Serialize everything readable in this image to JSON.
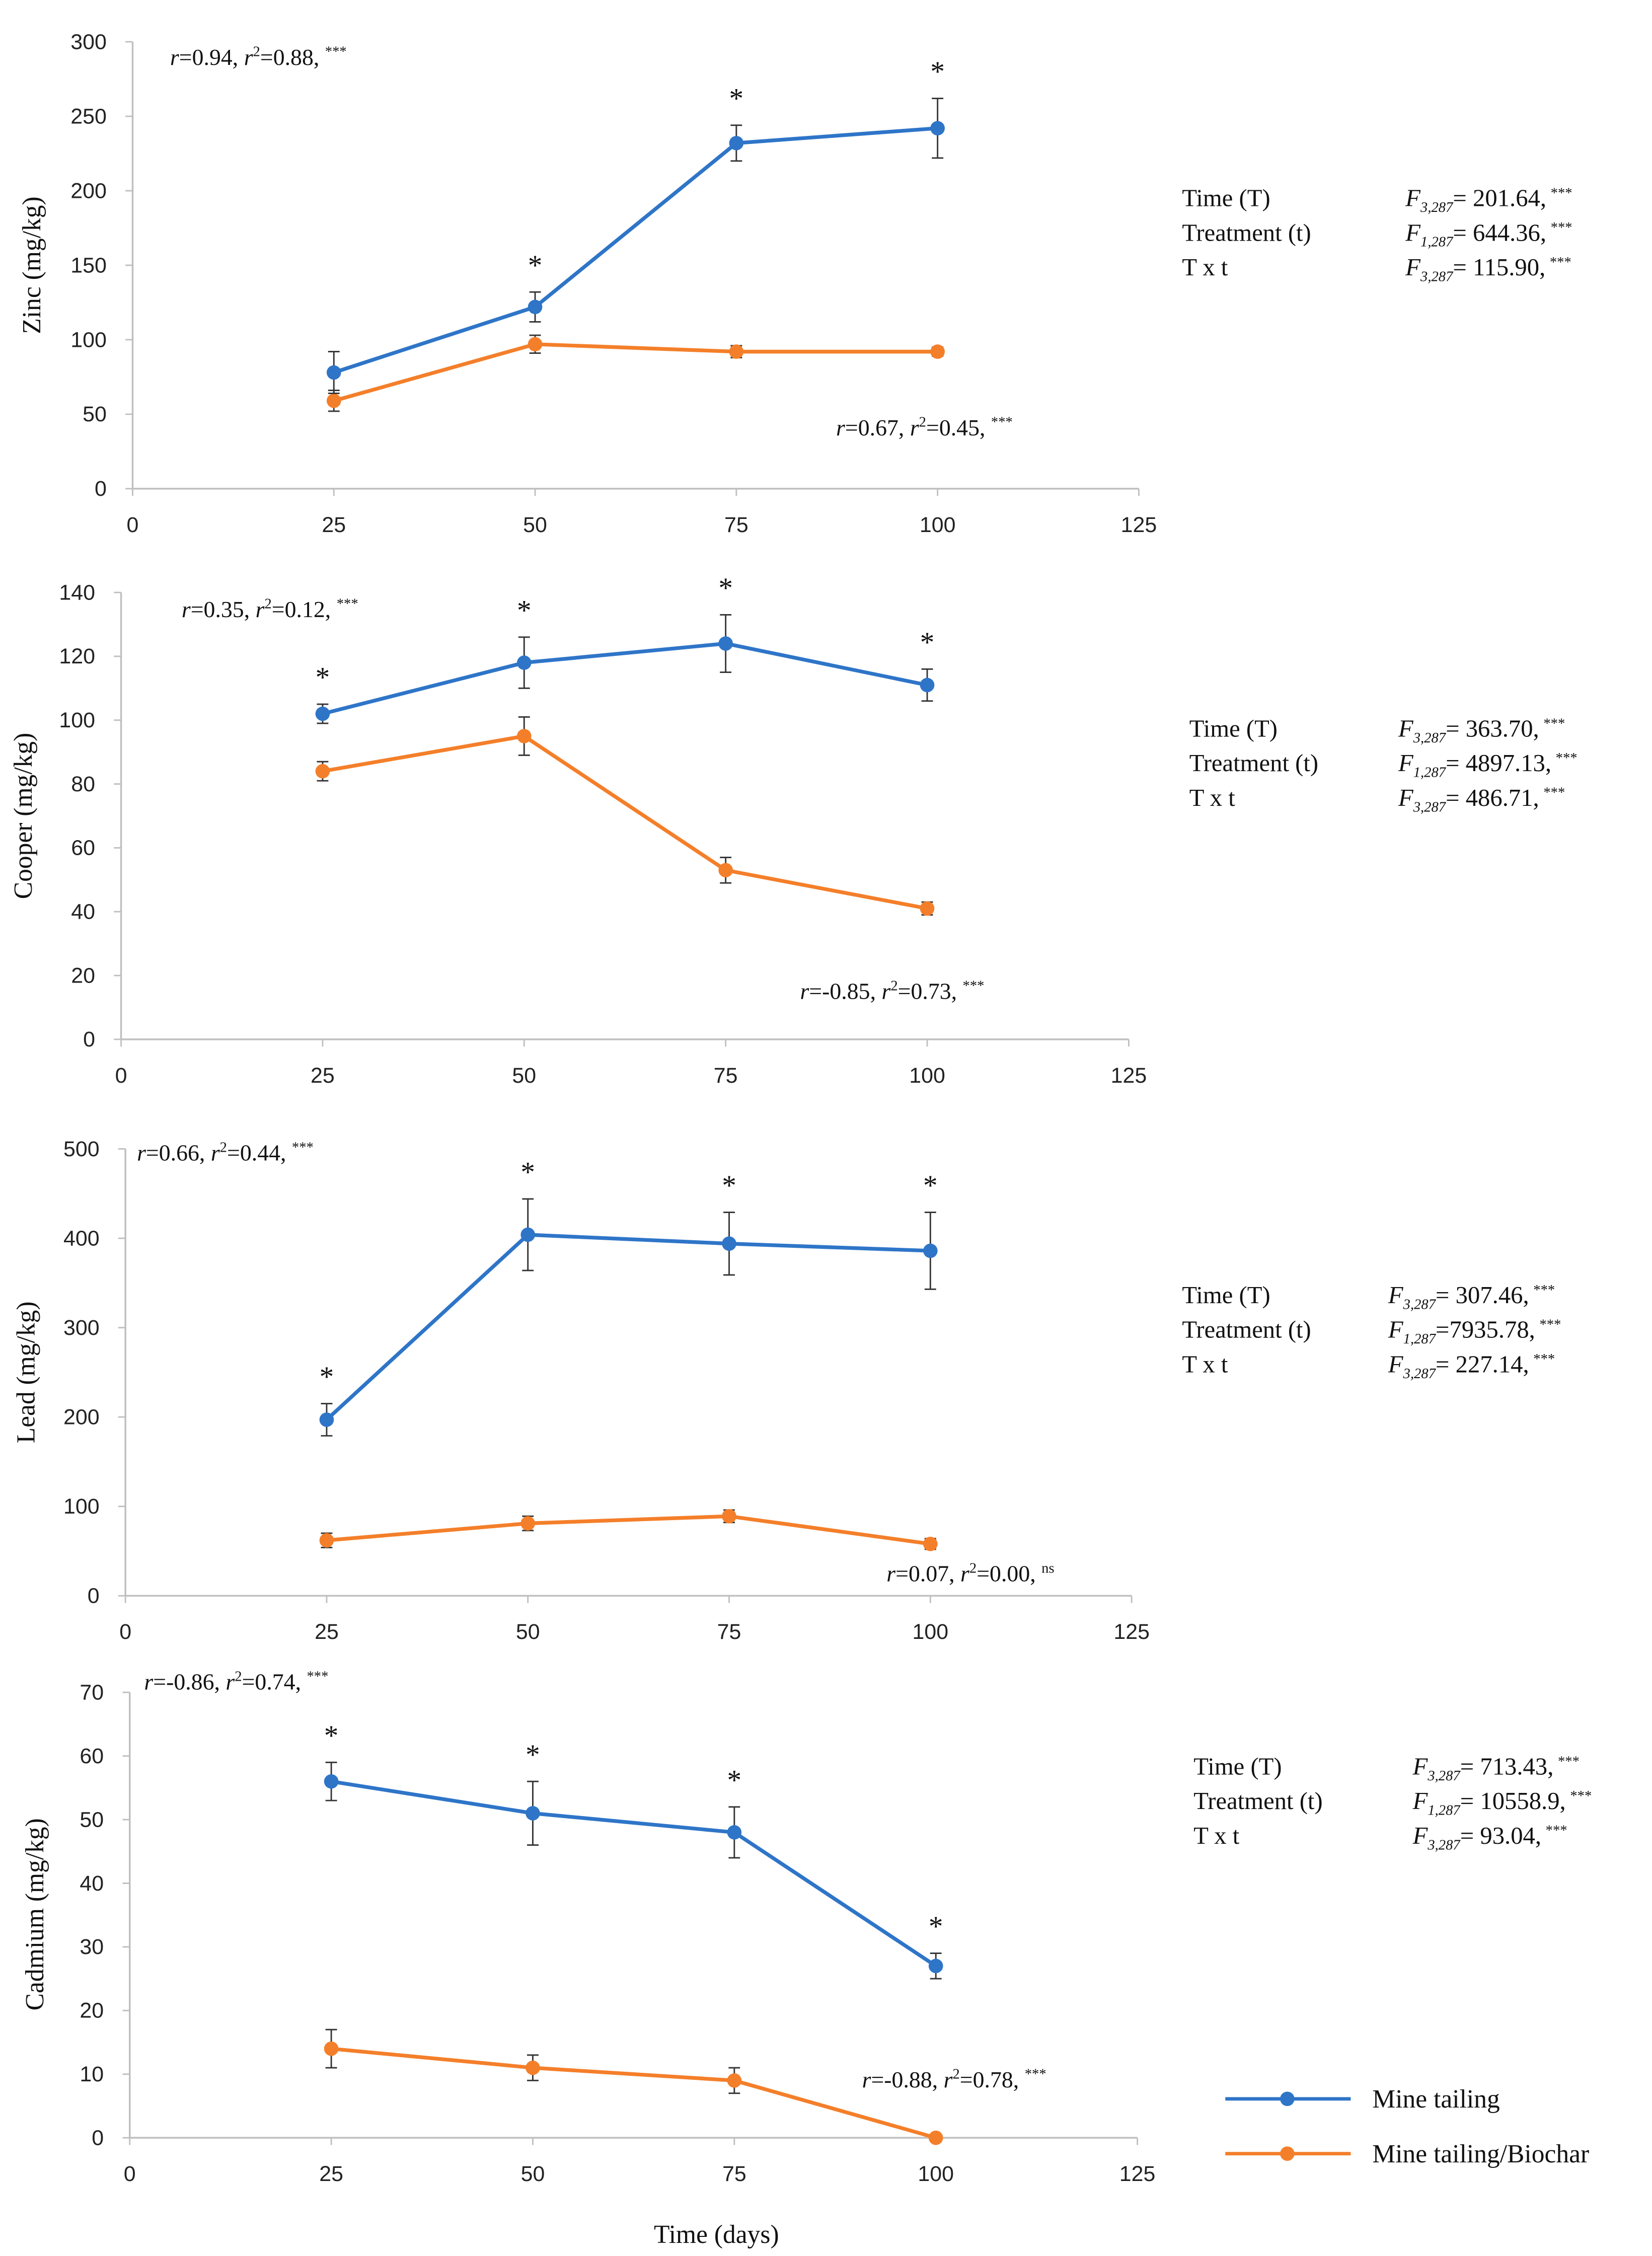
{
  "chart_data": [
    {
      "type": "line",
      "ylabel": "Zinc (mg/kg)",
      "xlabel": "",
      "x": [
        25,
        50,
        75,
        100
      ],
      "xlim": [
        0,
        125
      ],
      "xticks": [
        0,
        25,
        50,
        75,
        100,
        125
      ],
      "ylim": [
        0,
        300
      ],
      "yticks": [
        0,
        50,
        100,
        150,
        200,
        250,
        300
      ],
      "series": [
        {
          "name": "Mine tailing",
          "values": [
            78,
            122,
            232,
            242
          ],
          "errors": [
            14,
            10,
            12,
            20
          ],
          "significance": [
            "",
            "*",
            "*",
            "*"
          ]
        },
        {
          "name": "Mine tailing/Biochar",
          "values": [
            59,
            97,
            92,
            92
          ],
          "errors": [
            7,
            6,
            4,
            3
          ]
        }
      ],
      "annotations": [
        {
          "r": "0.94",
          "r2": "0.88",
          "sig": "***"
        },
        {
          "r": "0.67",
          "r2": "0.45",
          "sig": "***"
        }
      ],
      "stats": [
        {
          "label": "Time (T)",
          "df": "3,287",
          "value": "= 201.64,",
          "sig": "***"
        },
        {
          "label": "Treatment (t)",
          "df": "1,287",
          "value": "= 644.36,",
          "sig": "***"
        },
        {
          "label": "T x t",
          "df": "3,287",
          "value": "= 115.90,",
          "sig": "***"
        }
      ]
    },
    {
      "type": "line",
      "ylabel": "Cooper (mg/kg)",
      "xlabel": "",
      "x": [
        25,
        50,
        75,
        100
      ],
      "xlim": [
        0,
        125
      ],
      "xticks": [
        0,
        25,
        50,
        75,
        100,
        125
      ],
      "ylim": [
        0,
        140
      ],
      "yticks": [
        0,
        20,
        40,
        60,
        80,
        100,
        120,
        140
      ],
      "series": [
        {
          "name": "Mine tailing",
          "values": [
            102,
            118,
            124,
            111
          ],
          "errors": [
            3,
            8,
            9,
            5
          ],
          "significance": [
            "*",
            "*",
            "*",
            "*"
          ]
        },
        {
          "name": "Mine tailing/Biochar",
          "values": [
            84,
            95,
            53,
            41
          ],
          "errors": [
            3,
            6,
            4,
            2
          ]
        }
      ],
      "annotations": [
        {
          "r": "0.35",
          "r2": "0.12",
          "sig": "***"
        },
        {
          "r": "-0.85",
          "r2": "0.73",
          "sig": "***"
        }
      ],
      "stats": [
        {
          "label": "Time (T)",
          "df": "3,287",
          "value": "= 363.70,",
          "sig": "***"
        },
        {
          "label": "Treatment (t)",
          "df": "1,287",
          "value": "= 4897.13,",
          "sig": "***"
        },
        {
          "label": "T x t",
          "df": "3,287",
          "value": "= 486.71,",
          "sig": "***"
        }
      ]
    },
    {
      "type": "line",
      "ylabel": "Lead (mg/kg)",
      "xlabel": "",
      "x": [
        25,
        50,
        75,
        100
      ],
      "xlim": [
        0,
        125
      ],
      "xticks": [
        0,
        25,
        50,
        75,
        100,
        125
      ],
      "ylim": [
        0,
        500
      ],
      "yticks": [
        0,
        100,
        200,
        300,
        400,
        500
      ],
      "series": [
        {
          "name": "Mine tailing",
          "values": [
            197,
            404,
            394,
            386
          ],
          "errors": [
            18,
            40,
            35,
            43
          ],
          "significance": [
            "*",
            "*",
            "*",
            "*"
          ]
        },
        {
          "name": "Mine tailing/Biochar",
          "values": [
            62,
            81,
            89,
            58
          ],
          "errors": [
            8,
            8,
            7,
            6
          ]
        }
      ],
      "annotations": [
        {
          "r": "0.66",
          "r2": "0.44",
          "sig": "***"
        },
        {
          "r": "0.07",
          "r2": "0.00",
          "sig": "ns"
        }
      ],
      "stats": [
        {
          "label": "Time (T)",
          "df": "3,287",
          "value": "= 307.46,",
          "sig": "***"
        },
        {
          "label": "Treatment (t)",
          "df": "1,287",
          "value": "=7935.78,",
          "sig": "***"
        },
        {
          "label": "T x t",
          "df": "3,287",
          "value": "= 227.14,",
          "sig": "***"
        }
      ]
    },
    {
      "type": "line",
      "ylabel": "Cadmium (mg/kg)",
      "xlabel": "Time (days)",
      "x": [
        25,
        50,
        75,
        100
      ],
      "xlim": [
        0,
        125
      ],
      "xticks": [
        0,
        25,
        50,
        75,
        100,
        125
      ],
      "ylim": [
        0,
        70
      ],
      "yticks": [
        0,
        10,
        20,
        30,
        40,
        50,
        60,
        70
      ],
      "series": [
        {
          "name": "Mine tailing",
          "values": [
            56,
            51,
            48,
            27
          ],
          "errors": [
            3,
            5,
            4,
            2
          ],
          "significance": [
            "*",
            "*",
            "*",
            "*"
          ]
        },
        {
          "name": "Mine tailing/Biochar",
          "values": [
            14,
            11,
            9,
            0
          ],
          "errors": [
            3,
            2,
            2,
            0.5
          ]
        }
      ],
      "annotations": [
        {
          "r": "-0.86",
          "r2": "0.74",
          "sig": "***"
        },
        {
          "r": "-0.88",
          "r2": "0.78",
          "sig": "***"
        }
      ],
      "stats": [
        {
          "label": "Time (T)",
          "df": "3,287",
          "value": "= 713.43,",
          "sig": "***"
        },
        {
          "label": "Treatment (t)",
          "df": "1,287",
          "value": "= 10558.9,",
          "sig": "***"
        },
        {
          "label": "T x t",
          "df": "3,287",
          "value": "= 93.04,",
          "sig": "***"
        }
      ]
    }
  ],
  "legend": {
    "items": [
      {
        "label": "Mine tailing",
        "color": "#2e75c8"
      },
      {
        "label": "Mine tailing/Biochar",
        "color": "#f47f2a"
      }
    ],
    "placement": "bottom-right"
  },
  "colors": {
    "mine_tailing": "#2e75c8",
    "biochar": "#f47f2a",
    "axis": "#bfbfbf"
  }
}
